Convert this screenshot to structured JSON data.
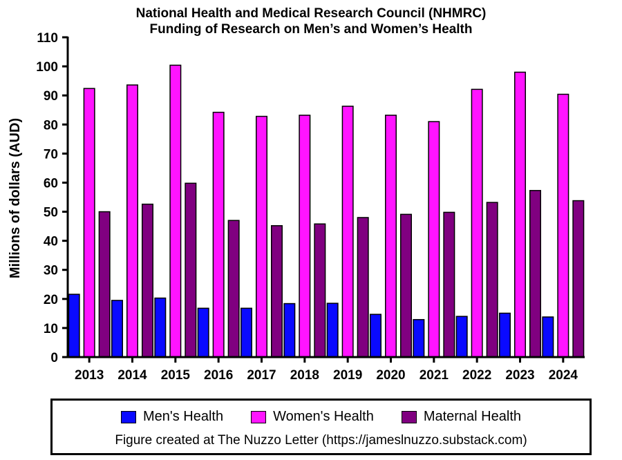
{
  "colors": {
    "mens": "#0a0aff",
    "womens": "#ff14ff",
    "maternal": "#800080",
    "axis": "#000000"
  },
  "legend": {
    "items": [
      {
        "label": "Men's Health",
        "color": "#0a0aff"
      },
      {
        "label": "Women's Health",
        "color": "#ff14ff"
      },
      {
        "label": "Maternal Health",
        "color": "#800080"
      }
    ],
    "credit": "Figure created at The Nuzzo Letter (https://jameslnuzzo.substack.com)"
  },
  "chart_data": {
    "type": "bar",
    "title": [
      "National Health and Medical Research Council (NHMRC)",
      "Funding of Research on Men’s and Women’s Health"
    ],
    "xlabel": "",
    "ylabel": "Millions of dollars (AUD)",
    "ylim": [
      0,
      110
    ],
    "yticks": [
      0,
      10,
      20,
      30,
      40,
      50,
      60,
      70,
      80,
      90,
      100,
      110
    ],
    "categories": [
      "2013",
      "2014",
      "2015",
      "2016",
      "2017",
      "2018",
      "2019",
      "2020",
      "2021",
      "2022",
      "2023",
      "2024"
    ],
    "series": [
      {
        "name": "Men's Health",
        "values": [
          21.6,
          19.5,
          20.3,
          16.8,
          16.8,
          18.4,
          18.5,
          14.7,
          12.9,
          14.0,
          15.1,
          13.8
        ]
      },
      {
        "name": "Women's Health",
        "values": [
          92.4,
          93.6,
          100.4,
          84.2,
          82.8,
          83.2,
          86.3,
          83.2,
          81.0,
          92.1,
          98.0,
          90.4
        ]
      },
      {
        "name": "Maternal Health",
        "values": [
          50.0,
          52.6,
          59.8,
          47.0,
          45.2,
          45.8,
          48.0,
          49.1,
          49.8,
          53.2,
          57.3,
          53.8
        ]
      }
    ],
    "legend_position": "bottom"
  }
}
